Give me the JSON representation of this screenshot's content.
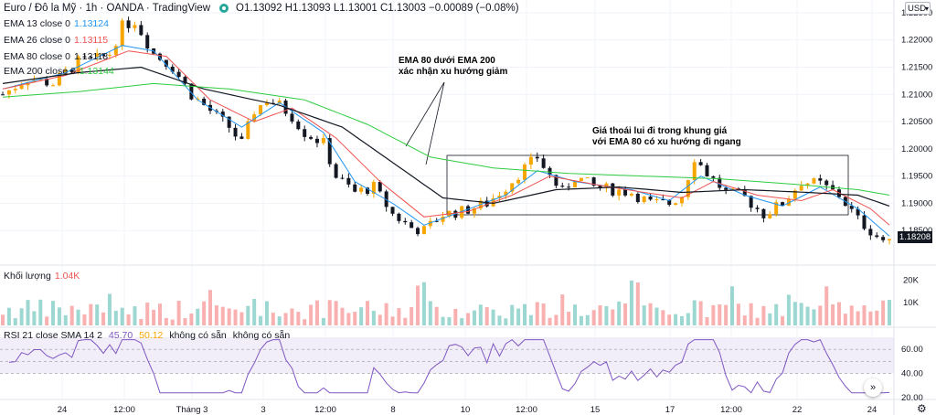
{
  "header": {
    "symbol": "Euro / Đô la Mỹ · 1h · OANDA · TradingView",
    "ohlc": "O1.13092 H1.13093 L1.13001 C1.13003 −0.00089 (−0.08%)"
  },
  "currency": "USD",
  "indicators": [
    {
      "label": "EMA 13 close 0",
      "value": "1.13124",
      "color": "#2196f3"
    },
    {
      "label": "EMA 26 close 0",
      "value": "1.13115",
      "color": "#ef5350"
    },
    {
      "label": "EMA 80 close 0",
      "value": "1.13118",
      "color": "#131722"
    },
    {
      "label": "EMA 200 close 0",
      "value": "1.13144",
      "color": "#2ecc40"
    }
  ],
  "annotations": {
    "ema_note_line1": "EMA 80 dưới EMA 200",
    "ema_note_line2": "xác nhận xu hướng giảm",
    "range_note_line1": "Giá thoái lui đi trong khung giá",
    "range_note_line2": "với EMA 80 có xu hướng đi ngang"
  },
  "volume_pane": {
    "label": "Khối lượng",
    "value": "1.04K",
    "value_color": "#ef5350",
    "axis_ticks": [
      "20K",
      "10K"
    ]
  },
  "rsi_pane": {
    "label": "RSI 21 close SMA 14 2",
    "value1": "45.70",
    "value2": "50.12",
    "na1": "không có sẵn",
    "na2": "không có sẵn",
    "axis_ticks": [
      "60.00",
      "40.00",
      "20.00"
    ]
  },
  "current_price": "1.18208",
  "scroll_icon": "double-chevron-right-icon",
  "settings_icon": "gear-icon",
  "colors": {
    "up": "#f7a600",
    "down": "#131722",
    "ema13": "#2196f3",
    "ema26": "#ef5350",
    "ema80": "#131722",
    "ema200": "#2ecc40",
    "rsi": "#7e57c2"
  },
  "chart_data": {
    "type": "line",
    "subtype": "candlestick",
    "ylim": [
      1.18,
      1.226
    ],
    "y_ticks": [
      "1.22500",
      "1.22000",
      "1.21500",
      "1.21000",
      "1.20500",
      "1.20000",
      "1.19500",
      "1.19000",
      "1.18500"
    ],
    "x_ticks": [
      "24",
      "12:00",
      "Tháng 3",
      "3",
      "12:00",
      "8",
      "10",
      "12:00",
      "15",
      "17",
      "12:00",
      "22",
      "24"
    ],
    "price_path": [
      [
        0,
        1.21
      ],
      [
        4,
        1.213
      ],
      [
        8,
        1.212
      ],
      [
        12,
        1.216
      ],
      [
        15,
        1.2165
      ],
      [
        17,
        1.2175
      ],
      [
        19,
        1.2225
      ],
      [
        21,
        1.2235
      ],
      [
        24,
        1.2175
      ],
      [
        27,
        1.215
      ],
      [
        30,
        1.21
      ],
      [
        33,
        1.207
      ],
      [
        36,
        1.204
      ],
      [
        38,
        1.201
      ],
      [
        40,
        1.207
      ],
      [
        42,
        1.209
      ],
      [
        44,
        1.208
      ],
      [
        46,
        1.206
      ],
      [
        48,
        1.203
      ],
      [
        51,
        1.201
      ],
      [
        53,
        1.195
      ],
      [
        56,
        1.192
      ],
      [
        59,
        1.193
      ],
      [
        62,
        1.188
      ],
      [
        65,
        1.1855
      ],
      [
        67,
        1.185
      ],
      [
        70,
        1.188
      ],
      [
        73,
        1.1885
      ],
      [
        77,
        1.19
      ],
      [
        80,
        1.193
      ],
      [
        83,
        1.1965
      ],
      [
        85,
        1.1985
      ],
      [
        87,
        1.195
      ],
      [
        89,
        1.192
      ],
      [
        91,
        1.195
      ],
      [
        94,
        1.193
      ],
      [
        97,
        1.1925
      ],
      [
        100,
        1.192
      ],
      [
        103,
        1.19
      ],
      [
        106,
        1.19
      ],
      [
        108,
        1.1915
      ],
      [
        110,
        1.1985
      ],
      [
        112,
        1.1955
      ],
      [
        115,
        1.192
      ],
      [
        118,
        1.191
      ],
      [
        121,
        1.188
      ],
      [
        124,
        1.19
      ],
      [
        127,
        1.194
      ],
      [
        130,
        1.1935
      ],
      [
        133,
        1.1915
      ],
      [
        136,
        1.187
      ],
      [
        139,
        1.184
      ],
      [
        141,
        1.1825
      ]
    ],
    "series": [
      {
        "name": "EMA 13 close 0",
        "values": [
          [
            0,
            1.211
          ],
          [
            10,
            1.214
          ],
          [
            19,
            1.219
          ],
          [
            24,
            1.218
          ],
          [
            31,
            1.209
          ],
          [
            38,
            1.204
          ],
          [
            44,
            1.2085
          ],
          [
            51,
            1.203
          ],
          [
            56,
            1.194
          ],
          [
            62,
            1.19
          ],
          [
            67,
            1.186
          ],
          [
            73,
            1.1885
          ],
          [
            80,
            1.1915
          ],
          [
            85,
            1.196
          ],
          [
            91,
            1.194
          ],
          [
            100,
            1.1925
          ],
          [
            106,
            1.1905
          ],
          [
            111,
            1.195
          ],
          [
            118,
            1.1915
          ],
          [
            124,
            1.1895
          ],
          [
            130,
            1.193
          ],
          [
            136,
            1.189
          ],
          [
            141,
            1.184
          ]
        ]
      },
      {
        "name": "EMA 26 close 0",
        "values": [
          [
            0,
            1.211
          ],
          [
            10,
            1.2135
          ],
          [
            20,
            1.218
          ],
          [
            26,
            1.217
          ],
          [
            33,
            1.209
          ],
          [
            40,
            1.205
          ],
          [
            46,
            1.2075
          ],
          [
            53,
            1.202
          ],
          [
            60,
            1.194
          ],
          [
            67,
            1.1875
          ],
          [
            74,
            1.1885
          ],
          [
            81,
            1.1915
          ],
          [
            87,
            1.195
          ],
          [
            94,
            1.1935
          ],
          [
            102,
            1.192
          ],
          [
            108,
            1.191
          ],
          [
            113,
            1.194
          ],
          [
            120,
            1.1915
          ],
          [
            127,
            1.1905
          ],
          [
            132,
            1.1925
          ],
          [
            138,
            1.189
          ],
          [
            141,
            1.186
          ]
        ]
      },
      {
        "name": "EMA 80 close 0",
        "values": [
          [
            0,
            1.212
          ],
          [
            12,
            1.214
          ],
          [
            22,
            1.215
          ],
          [
            32,
            1.211
          ],
          [
            44,
            1.208
          ],
          [
            54,
            1.204
          ],
          [
            62,
            1.1975
          ],
          [
            70,
            1.191
          ],
          [
            78,
            1.19
          ],
          [
            88,
            1.1925
          ],
          [
            98,
            1.193
          ],
          [
            108,
            1.192
          ],
          [
            118,
            1.1925
          ],
          [
            128,
            1.192
          ],
          [
            136,
            1.1915
          ],
          [
            141,
            1.1895
          ]
        ]
      },
      {
        "name": "EMA 200 close 0",
        "values": [
          [
            0,
            1.2095
          ],
          [
            12,
            1.2105
          ],
          [
            24,
            1.212
          ],
          [
            36,
            1.211
          ],
          [
            48,
            1.209
          ],
          [
            58,
            1.2045
          ],
          [
            68,
            1.1985
          ],
          [
            78,
            1.1965
          ],
          [
            90,
            1.1955
          ],
          [
            102,
            1.195
          ],
          [
            114,
            1.1945
          ],
          [
            126,
            1.1935
          ],
          [
            136,
            1.1925
          ],
          [
            141,
            1.1915
          ]
        ]
      }
    ],
    "volume_range": [
      0,
      25000
    ],
    "rsi_range": [
      20,
      70
    ]
  }
}
